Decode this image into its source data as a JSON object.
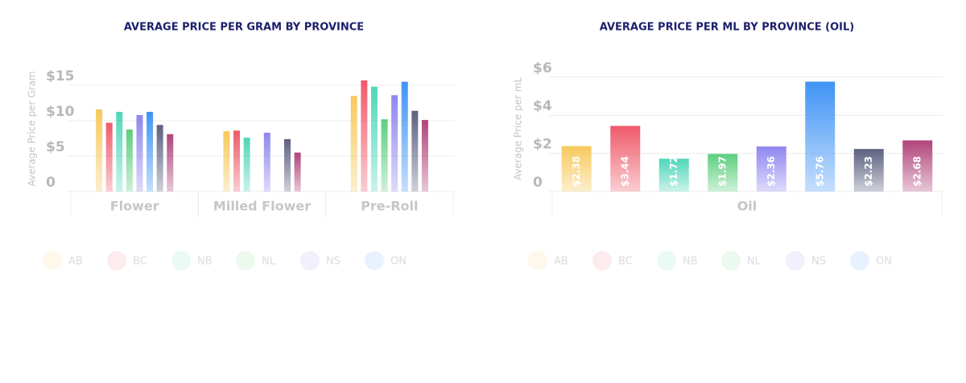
{
  "chart_data": [
    {
      "type": "bar",
      "title": "AVERAGE PRICE PER GRAM BY PROVINCE",
      "y_label": "Average Price per Gram",
      "categories": [
        "Flower",
        "Milled Flower",
        "Pre-Roll"
      ],
      "series": [
        {
          "name": "AB",
          "color": "#f7c95c",
          "values": [
            11.6,
            8.5,
            13.5
          ]
        },
        {
          "name": "BC",
          "color": "#ef5a6a",
          "values": [
            9.7,
            8.6,
            15.7
          ]
        },
        {
          "name": "NB",
          "color": "#4fd6b8",
          "values": [
            11.25,
            7.6,
            14.8
          ]
        },
        {
          "name": "NL",
          "color": "#5ccf7e",
          "values": [
            8.75,
            null,
            10.2
          ]
        },
        {
          "name": "NS",
          "color": "#8f86ef",
          "values": [
            10.8,
            8.3,
            13.6
          ]
        },
        {
          "name": "ON",
          "color": "#3f93f5",
          "values": [
            11.25,
            null,
            15.5
          ]
        },
        {
          "color": "#5c6180",
          "values": [
            9.4,
            7.4,
            11.4
          ]
        },
        {
          "color": "#b0447a",
          "values": [
            8.1,
            5.5,
            10.1
          ]
        }
      ],
      "ylim": [
        0,
        17
      ],
      "yticks": [
        0,
        {
          "value": 5,
          "label": "$5"
        },
        {
          "value": 10,
          "label": "$10"
        },
        {
          "value": 15,
          "label": "$15"
        }
      ],
      "grid": true
    },
    {
      "type": "bar",
      "title": "AVERAGE PRICE PER ML BY PROVINCE (OIL)",
      "y_label": "Average Price per mL",
      "categories": [
        "Oil"
      ],
      "series": [
        {
          "name": "AB",
          "color": "#f7c95c",
          "values": [
            2.38
          ],
          "value_labels": [
            "$2.38"
          ]
        },
        {
          "name": "BC",
          "color": "#ef5a6a",
          "values": [
            3.44
          ],
          "value_labels": [
            "$3.44"
          ]
        },
        {
          "name": "NB",
          "color": "#4fd6b8",
          "values": [
            1.72
          ],
          "value_labels": [
            "$1.72"
          ]
        },
        {
          "name": "NL",
          "color": "#5ccf7e",
          "values": [
            1.97
          ],
          "value_labels": [
            "$1.97"
          ]
        },
        {
          "name": "NS",
          "color": "#8f86ef",
          "values": [
            2.36
          ],
          "value_labels": [
            "$2.36"
          ]
        },
        {
          "name": "ON",
          "color": "#3f93f5",
          "values": [
            5.76
          ],
          "value_labels": [
            "$5.76"
          ]
        },
        {
          "color": "#5c6180",
          "values": [
            2.23
          ],
          "value_labels": [
            "$2.23"
          ]
        },
        {
          "color": "#b0447a",
          "values": [
            2.68
          ],
          "value_labels": [
            "$2.68"
          ]
        }
      ],
      "ylim": [
        0,
        6.2
      ],
      "yticks": [
        0,
        {
          "value": 2,
          "label": "$2"
        },
        {
          "value": 4,
          "label": "$4"
        },
        {
          "value": 6,
          "label": "$6"
        }
      ],
      "grid": true
    }
  ]
}
